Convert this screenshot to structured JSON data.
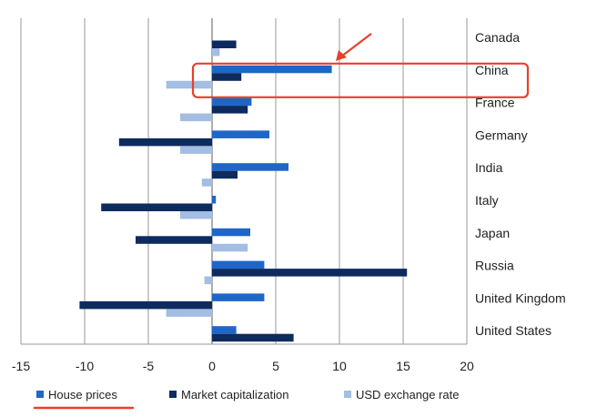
{
  "chart_data": {
    "type": "bar",
    "orientation": "horizontal",
    "categories": [
      "Canada",
      "China",
      "France",
      "Germany",
      "India",
      "Italy",
      "Japan",
      "Russia",
      "United Kingdom",
      "United States"
    ],
    "series": [
      {
        "name": "House prices",
        "color": "#1f66c8",
        "values": [
          0,
          9.4,
          3.1,
          4.5,
          6.0,
          0.3,
          3.0,
          4.1,
          4.1,
          1.9
        ]
      },
      {
        "name": "Market capitalization",
        "color": "#0d2b5e",
        "values": [
          1.9,
          2.3,
          2.8,
          -7.3,
          2.0,
          -8.7,
          -6.0,
          15.3,
          -10.4,
          6.4
        ]
      },
      {
        "name": "USD exchange rate",
        "color": "#a3bde3",
        "values": [
          0.6,
          -3.6,
          -2.5,
          -2.5,
          -0.8,
          -2.5,
          2.8,
          -0.6,
          -3.6,
          0
        ]
      }
    ],
    "xlim": [
      -15,
      20
    ],
    "xticks": [
      "-15",
      "-10",
      "-5",
      "0",
      "5",
      "10",
      "15",
      "20"
    ],
    "grid": "vertical",
    "legend_position": "bottom",
    "annotations": [
      {
        "type": "highlight-box",
        "category": "China",
        "color": "#e8402a"
      },
      {
        "type": "arrow",
        "points_to": "China",
        "color": "#e8402a"
      },
      {
        "type": "underline",
        "legend_item": "House prices",
        "color": "#e8402a"
      }
    ]
  }
}
